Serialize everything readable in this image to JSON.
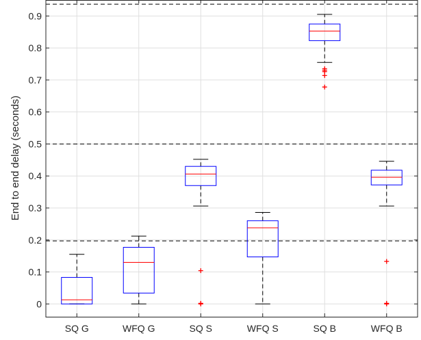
{
  "chart_data": {
    "type": "box",
    "ylabel": "End to end delay (seconds)",
    "xlabel": "",
    "ylim": [
      -0.04,
      0.95
    ],
    "yticks": [
      0,
      0.1,
      0.2,
      0.3,
      0.4,
      0.5,
      0.6,
      0.7,
      0.8,
      0.9
    ],
    "ytick_labels": [
      "0",
      "0.1",
      "0.2",
      "0.3",
      "0.4",
      "0.5",
      "0.6",
      "0.7",
      "0.8",
      "0.9"
    ],
    "grid": true,
    "reference_lines": [
      0.197,
      0.5,
      0.937
    ],
    "categories": [
      "SQ G",
      "WFQ G",
      "SQ S",
      "WFQ S",
      "SQ B",
      "WFQ B"
    ],
    "boxes": [
      {
        "whisker_low": 0.0,
        "q1": 0.0,
        "median": 0.013,
        "q3": 0.083,
        "whisker_high": 0.155,
        "outliers": []
      },
      {
        "whisker_low": 0.0,
        "q1": 0.034,
        "median": 0.13,
        "q3": 0.177,
        "whisker_high": 0.212,
        "outliers": []
      },
      {
        "whisker_low": 0.306,
        "q1": 0.37,
        "median": 0.406,
        "q3": 0.43,
        "whisker_high": 0.452,
        "outliers": [
          0.104,
          0.002,
          0.0
        ]
      },
      {
        "whisker_low": 0.0,
        "q1": 0.147,
        "median": 0.238,
        "q3": 0.26,
        "whisker_high": 0.286,
        "outliers": []
      },
      {
        "whisker_low": 0.755,
        "q1": 0.823,
        "median": 0.853,
        "q3": 0.875,
        "whisker_high": 0.905,
        "outliers": [
          0.735,
          0.73,
          0.726,
          0.714,
          0.678
        ]
      },
      {
        "whisker_low": 0.306,
        "q1": 0.372,
        "median": 0.396,
        "q3": 0.418,
        "whisker_high": 0.446,
        "outliers": [
          0.133,
          0.002,
          0.0
        ]
      }
    ],
    "colors": {
      "box": "#0000ff",
      "median": "#ff0000",
      "whisker": "#000000",
      "outlier": "#ff0000",
      "grid": "#dfdfdf",
      "axis": "#262626"
    }
  }
}
